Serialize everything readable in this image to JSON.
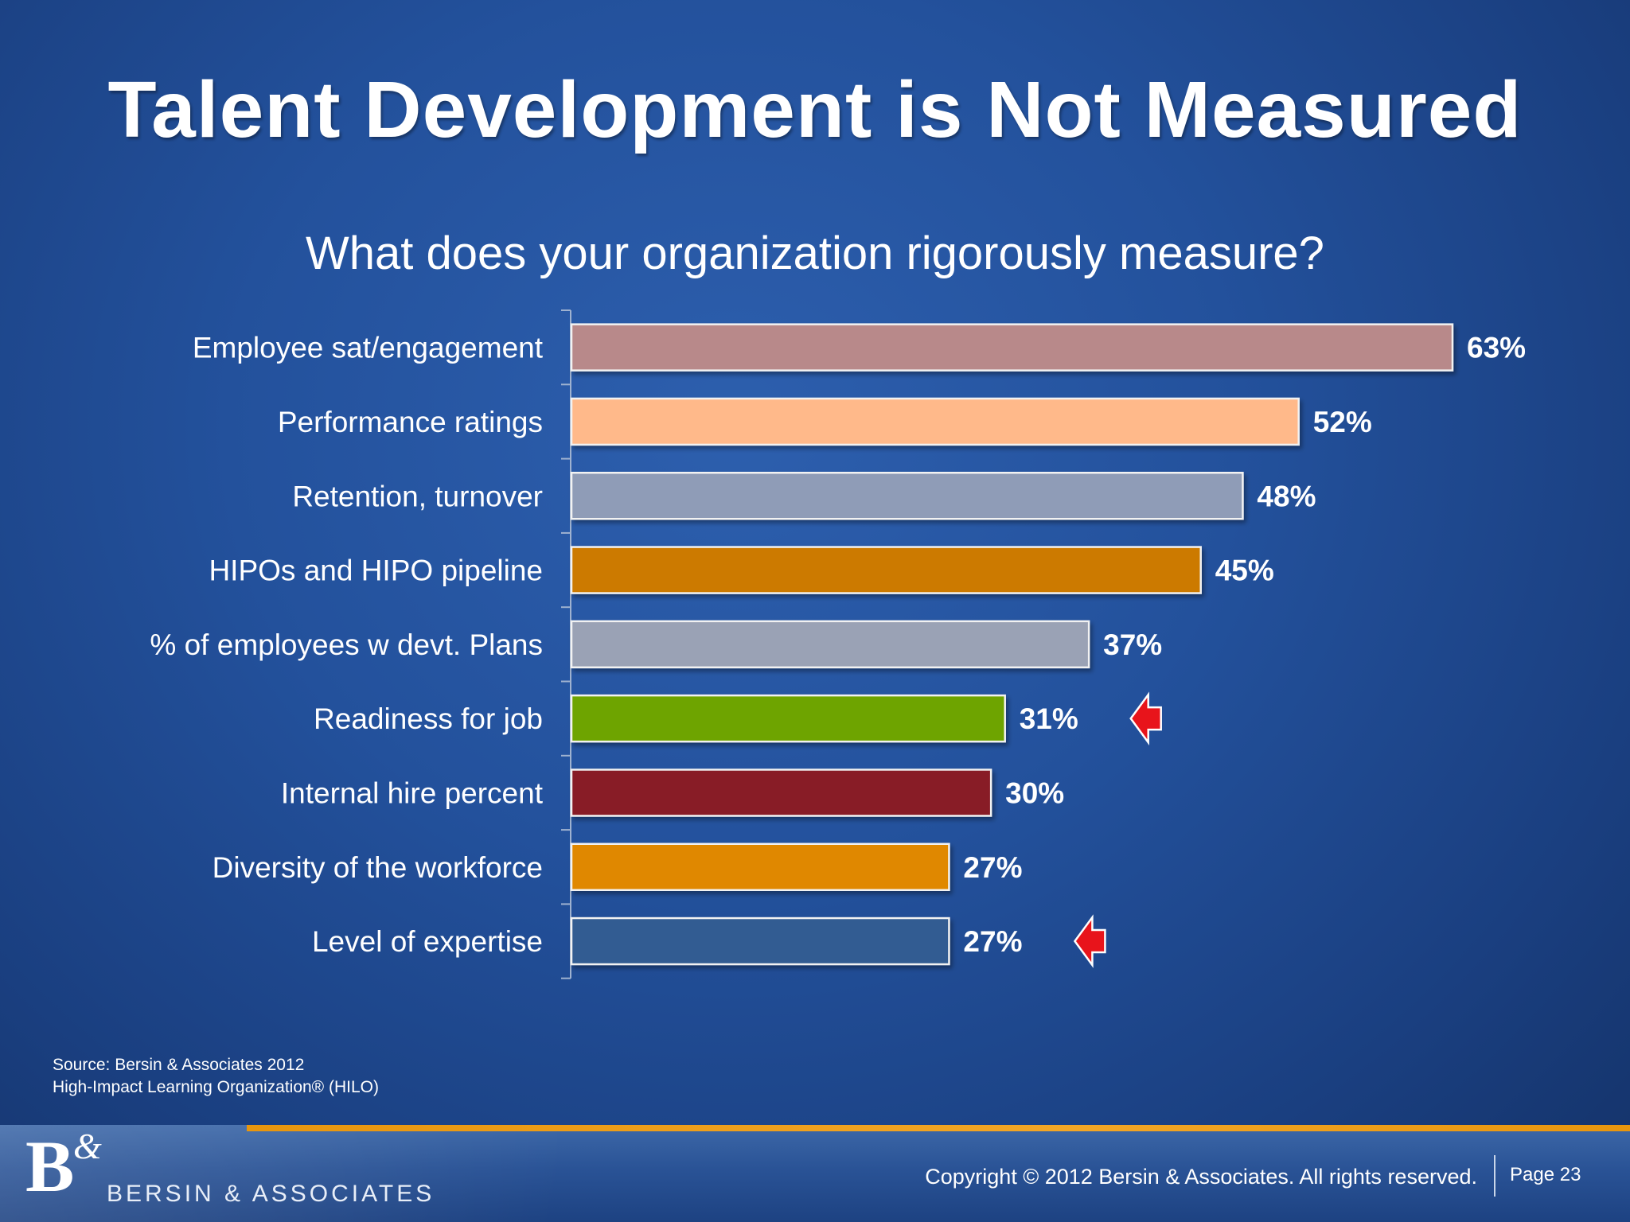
{
  "slide": {
    "title": "Talent Development is Not Measured",
    "source_line1": "Source: Bersin & Associates 2012",
    "source_line2": "High-Impact Learning Organization® (HILO)"
  },
  "footer": {
    "logo_mark": "B",
    "logo_amp": "&",
    "logo_text": "BERSIN & ASSOCIATES",
    "copyright": "Copyright © 2012 Bersin & Associates. All rights reserved.",
    "page": "Page 23"
  },
  "chart_data": {
    "type": "bar",
    "orientation": "horizontal",
    "title": "What does your organization rigorously measure?",
    "xlabel": "",
    "ylabel": "",
    "xlim": [
      0,
      63
    ],
    "grid": false,
    "legend": "none",
    "categories": [
      "Employee sat/engagement",
      "Performance ratings",
      "Retention, turnover",
      "HIPOs and HIPO pipeline",
      "% of employees w devt. Plans",
      "Readiness for job",
      "Internal hire percent",
      "Diversity of the workforce",
      "Level of expertise"
    ],
    "values": [
      63,
      52,
      48,
      45,
      37,
      31,
      30,
      27,
      27
    ],
    "value_labels": [
      "63%",
      "52%",
      "48%",
      "45%",
      "37%",
      "31%",
      "30%",
      "27%",
      "27%"
    ],
    "colors": [
      "#b8898a",
      "#ffb98a",
      "#8f9cb7",
      "#cc7a00",
      "#9aa2b5",
      "#6ea400",
      "#881b27",
      "#e08800",
      "#315b92"
    ],
    "highlighted": [
      "Readiness for job",
      "Level of expertise"
    ],
    "highlight_color": "#e8141b"
  }
}
